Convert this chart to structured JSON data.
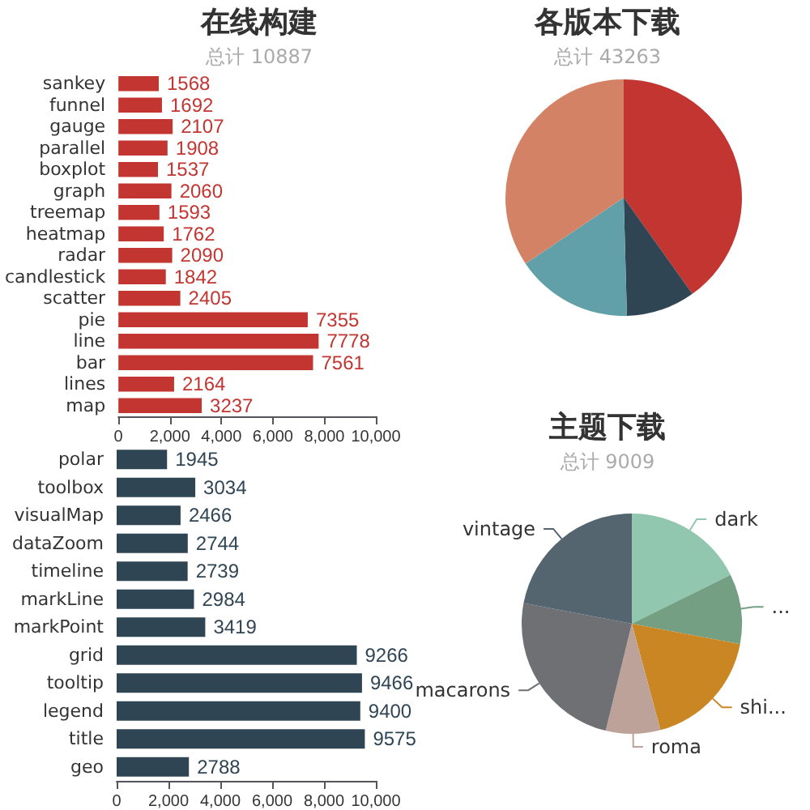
{
  "chart_data": [
    {
      "type": "bar",
      "title": "在线构建",
      "subtitle": "总计 10887",
      "orientation": "horizontal",
      "categories": [
        "sankey",
        "funnel",
        "gauge",
        "parallel",
        "boxplot",
        "graph",
        "treemap",
        "heatmap",
        "radar",
        "candlestick",
        "scatter",
        "pie",
        "line",
        "bar",
        "lines",
        "map"
      ],
      "values": [
        1568,
        1692,
        2107,
        1908,
        1537,
        2060,
        1593,
        1762,
        2090,
        1842,
        2405,
        7355,
        7778,
        7561,
        2164,
        3237
      ],
      "color": "#c23531",
      "data_labels": true,
      "grid": false,
      "legend": false,
      "xlim": [
        0,
        10000
      ],
      "xticks": [
        0,
        {
          "value": 2000,
          "label": "2,000"
        },
        {
          "value": 4000,
          "label": "4,000"
        },
        {
          "value": 6000,
          "label": "6,000"
        },
        {
          "value": 8000,
          "label": "8,000"
        },
        {
          "value": 10000,
          "label": "10,000"
        }
      ]
    },
    {
      "type": "pie",
      "title": "各版本下载",
      "subtitle": "总计 43263",
      "categories": [
        null,
        null,
        null,
        null
      ],
      "values": [
        40.14,
        9.43,
        16.02,
        34.41
      ],
      "colors": [
        "#c23531",
        "#2f4554",
        "#61a0a8",
        "#d48265"
      ],
      "legend": false
    },
    {
      "type": "bar",
      "orientation": "horizontal",
      "categories": [
        "polar",
        "toolbox",
        "visualMap",
        "dataZoom",
        "timeline",
        "markLine",
        "markPoint",
        "grid",
        "tooltip",
        "legend",
        "title",
        "geo"
      ],
      "values": [
        1945,
        3034,
        2466,
        2744,
        2739,
        2984,
        3419,
        9266,
        9466,
        9400,
        9575,
        2788
      ],
      "color": "#2f4554",
      "data_labels": true,
      "grid": false,
      "legend": false,
      "xlim": [
        0,
        10000
      ],
      "xticks": [
        0,
        {
          "value": 2000,
          "label": "2,000"
        },
        {
          "value": 4000,
          "label": "4,000"
        },
        {
          "value": 6000,
          "label": "6,000"
        },
        {
          "value": 8000,
          "label": "8,000"
        },
        {
          "value": 10000,
          "label": "10,000"
        }
      ]
    },
    {
      "type": "pie",
      "title": "主题下载",
      "subtitle": "总计 9009",
      "categories": [
        "dark",
        "...",
        "shi...",
        "roma",
        "macarons",
        "vintage"
      ],
      "values": [
        17.69,
        10.27,
        17.85,
        8.0,
        24.19,
        22.0
      ],
      "colors": [
        "#91c7ae",
        "#749f83",
        "#ca8622",
        "#bda29a",
        "#6e7074",
        "#546570"
      ],
      "legend": false
    }
  ]
}
